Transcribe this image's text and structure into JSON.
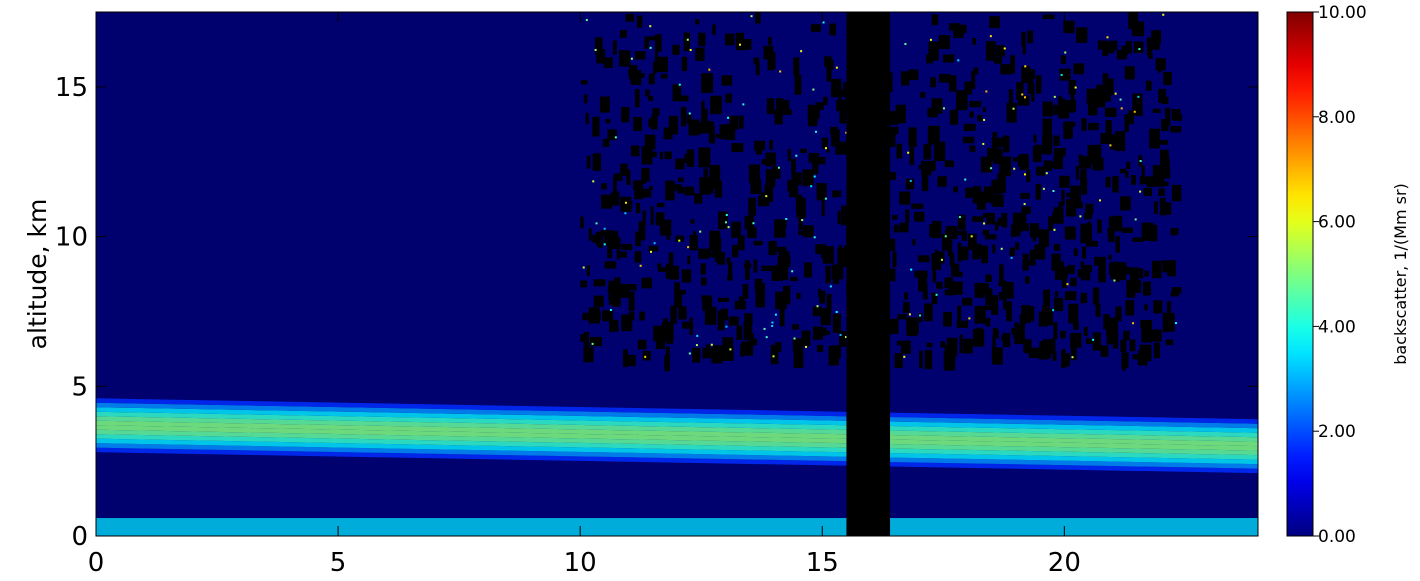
{
  "chart_data": {
    "type": "heatmap",
    "title": "",
    "xlabel": "",
    "ylabel": "altitude, km",
    "xlim": [
      0,
      24
    ],
    "ylim": [
      0,
      17.5
    ],
    "x_ticks": [
      0,
      5,
      10,
      15,
      20
    ],
    "x_tick_labels": [
      "0",
      "5",
      "10",
      "15",
      "20"
    ],
    "y_ticks": [
      0,
      5,
      10,
      15
    ],
    "y_tick_labels": [
      "0",
      "5",
      "10",
      "15"
    ],
    "colorbar": {
      "label": "backscatter, 1/(Mm sr)",
      "range": [
        0,
        10
      ],
      "ticks": [
        0,
        2,
        4,
        6,
        8,
        10
      ],
      "tick_labels": [
        "0.00",
        "2.00",
        "4.00",
        "6.00",
        "8.00",
        "10.00"
      ],
      "colormap": "jet"
    },
    "features": {
      "aerosol_layer": {
        "x": [
          0,
          24
        ],
        "bottom_km": [
          2.8,
          2.1
        ],
        "top_km": [
          4.6,
          3.9
        ],
        "peak_value": 4.5
      },
      "boundary_layer": {
        "x": [
          0,
          24
        ],
        "bottom_km": 0,
        "top_km": 0.6,
        "value": 3.5
      },
      "no_data_gap": {
        "x": [
          15.5,
          16.4
        ]
      },
      "high_altitude_noise": {
        "x": [
          10,
          22.3
        ],
        "altitude_km": [
          6,
          17.5
        ]
      },
      "background_value": 0.5
    }
  },
  "colors": {
    "no_data": "#000000",
    "background": "#00006e"
  }
}
